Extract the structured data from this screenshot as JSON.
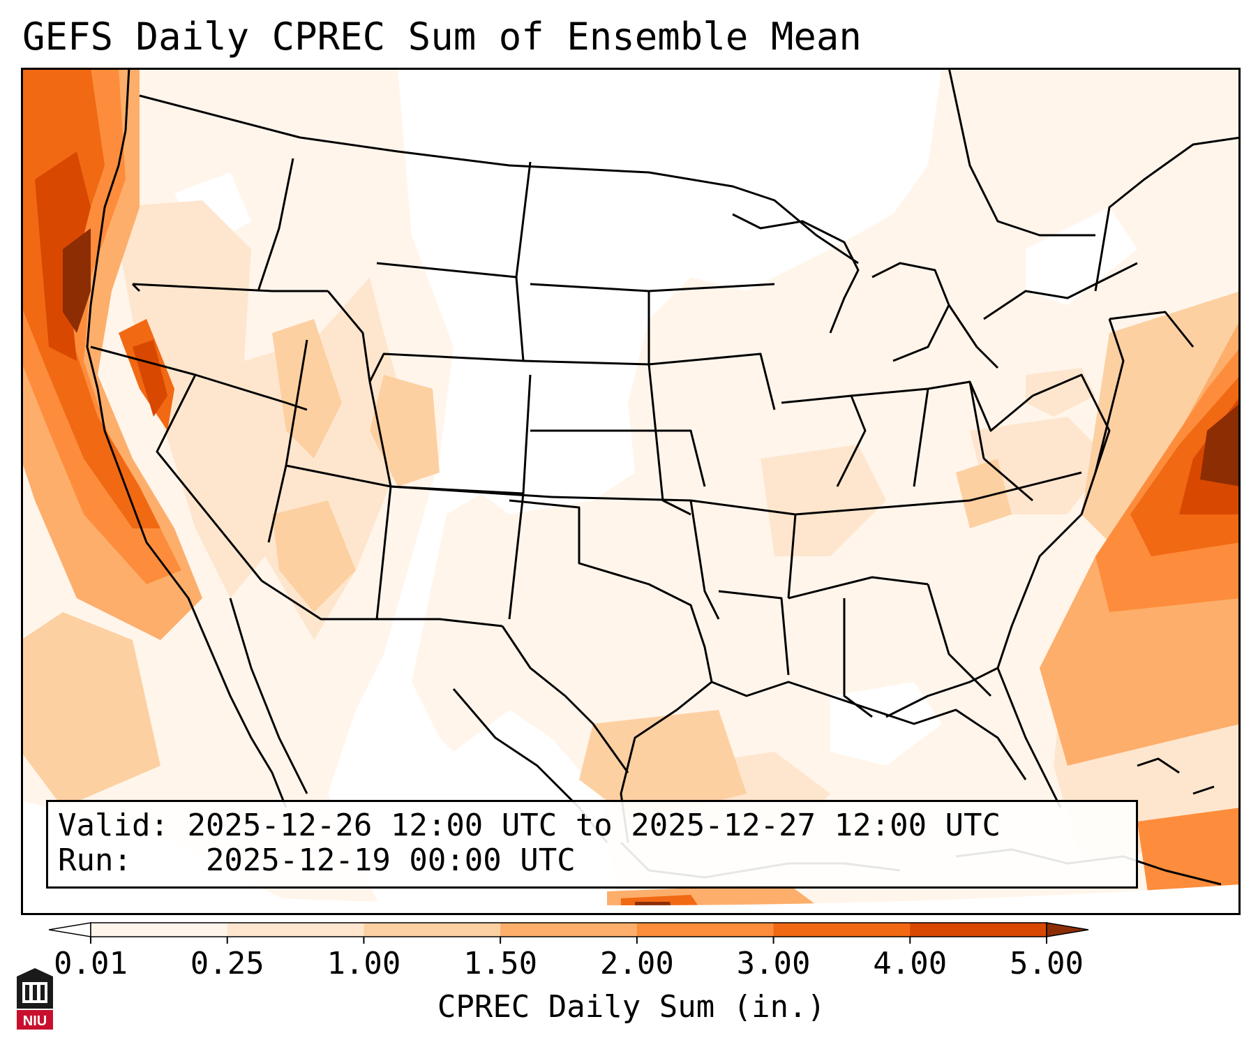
{
  "title": "GEFS Daily CPREC Sum of Ensemble Mean",
  "info": {
    "valid_label": "Valid:",
    "valid_value": "2025-12-26 12:00 UTC to 2025-12-27 12:00 UTC",
    "run_label": "Run:",
    "run_value": "2025-12-19 00:00 UTC"
  },
  "colorbar": {
    "label": "CPREC Daily Sum (in.)",
    "ticks": [
      "0.01",
      "0.25",
      "1.00",
      "1.50",
      "2.00",
      "3.00",
      "4.00",
      "5.00"
    ],
    "colors": [
      "#fff5eb",
      "#fee6ce",
      "#fdd0a2",
      "#fdae6b",
      "#fd8d3c",
      "#f16913",
      "#d94801",
      "#8c2d04"
    ],
    "extend": "both"
  },
  "logo": {
    "text": "NIU",
    "icon": "university-building-icon",
    "accent": "#c8102e"
  },
  "map": {
    "projection": "lambert-conformal",
    "region": "CONUS",
    "background": "#ffffff",
    "border_color": "#000000"
  }
}
